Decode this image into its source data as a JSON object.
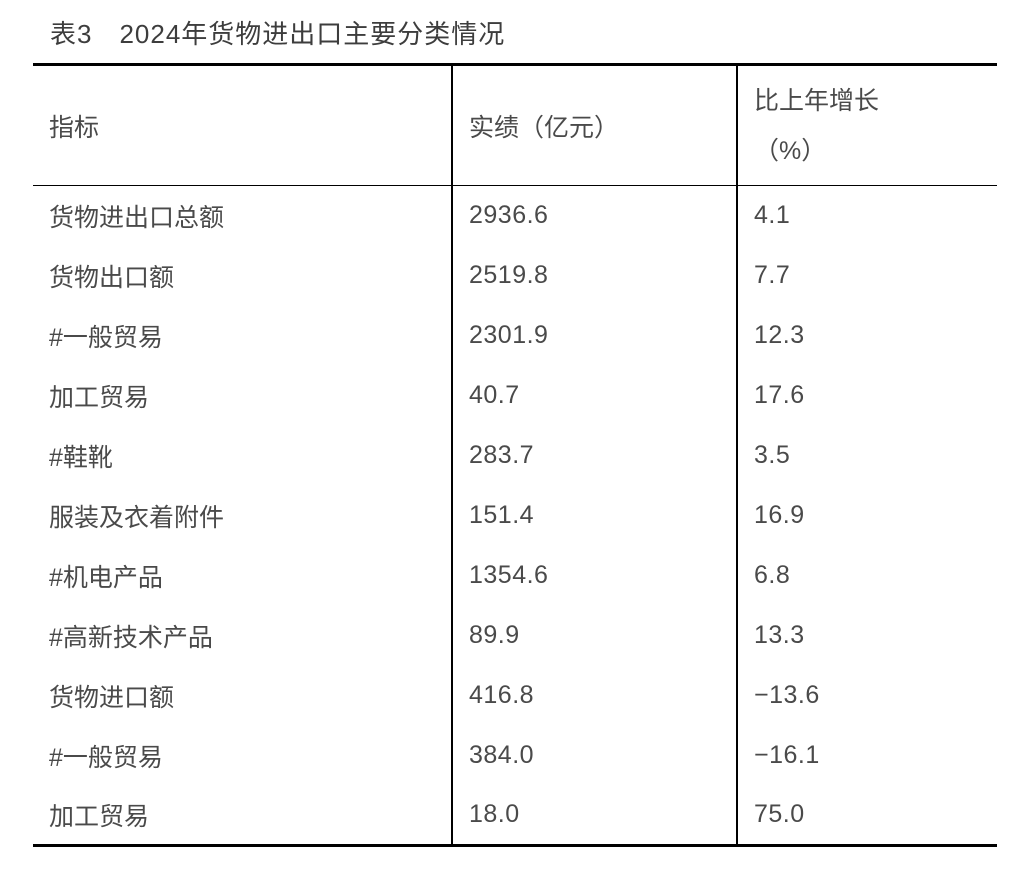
{
  "title": "表3　2024年货物进出口主要分类情况",
  "table": {
    "headers": {
      "indicator": "指标",
      "value": "实绩（亿元）",
      "growth_line1": "比上年增长",
      "growth_line2": "（%）"
    },
    "rows": [
      {
        "indicator": "货物进出口总额",
        "value": "2936.6",
        "growth": "4.1"
      },
      {
        "indicator": "货物出口额",
        "value": "2519.8",
        "growth": "7.7"
      },
      {
        "indicator": "#一般贸易",
        "value": "2301.9",
        "growth": "12.3"
      },
      {
        "indicator": "加工贸易",
        "value": "40.7",
        "growth": "17.6"
      },
      {
        "indicator": "#鞋靴",
        "value": "283.7",
        "growth": "3.5"
      },
      {
        "indicator": "服装及衣着附件",
        "value": "151.4",
        "growth": "16.9"
      },
      {
        "indicator": "#机电产品",
        "value": "1354.6",
        "growth": "6.8"
      },
      {
        "indicator": "#高新技术产品",
        "value": "89.9",
        "growth": "13.3"
      },
      {
        "indicator": "货物进口额",
        "value": "416.8",
        "growth": "−13.6"
      },
      {
        "indicator": "#一般贸易",
        "value": "384.0",
        "growth": "−16.1"
      },
      {
        "indicator": "加工贸易",
        "value": "18.0",
        "growth": "75.0"
      }
    ],
    "colors": {
      "border": "#000000",
      "text": "#4a4a4a",
      "title_text": "#3d3d3d",
      "background": "#ffffff"
    }
  }
}
